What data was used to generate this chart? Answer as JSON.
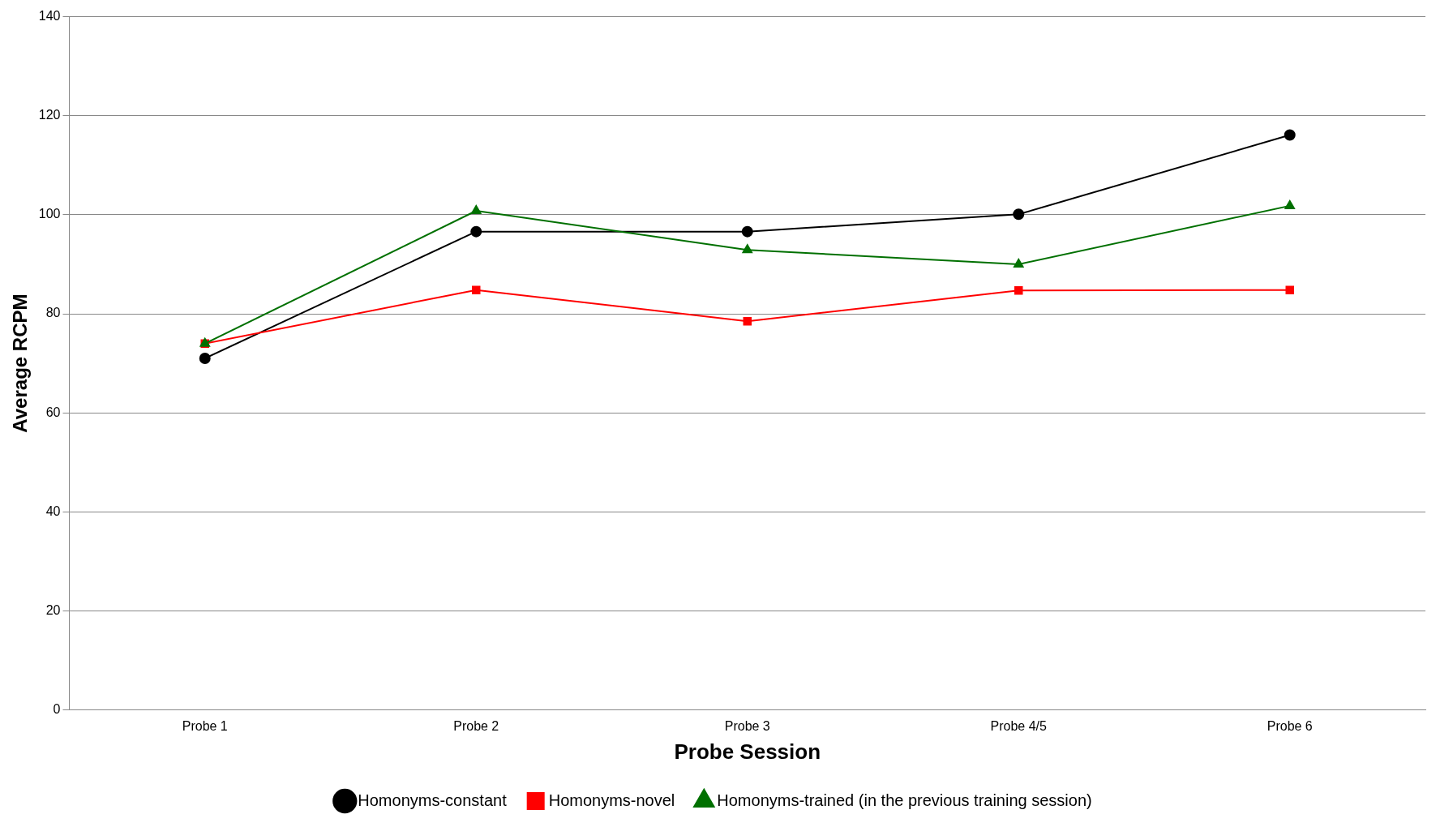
{
  "chart_data": {
    "type": "line",
    "xlabel": "Probe Session",
    "ylabel": "Average RCPM",
    "categories": [
      "Probe 1",
      "Probe 2",
      "Probe 3",
      "Probe 4/5",
      "Probe 6"
    ],
    "series": [
      {
        "name": "Homonyms-constant",
        "color": "#000000",
        "marker": "circle",
        "values": [
          71,
          96.6,
          96.6,
          100.1,
          116.1
        ]
      },
      {
        "name": "Homonyms-novel",
        "color": "#ff0000",
        "marker": "square",
        "values": [
          74,
          84.8,
          78.5,
          84.7,
          84.8
        ]
      },
      {
        "name": "Homonyms-trained (in the previous training session)",
        "color": "#007000",
        "marker": "triangle",
        "values": [
          74,
          100.8,
          92.9,
          90,
          101.8
        ]
      }
    ],
    "ylim": [
      0,
      140
    ],
    "yticks": [
      0,
      20,
      40,
      60,
      80,
      100,
      120,
      140
    ],
    "grid": "y",
    "legend": "bottom",
    "line_style": "solid"
  }
}
